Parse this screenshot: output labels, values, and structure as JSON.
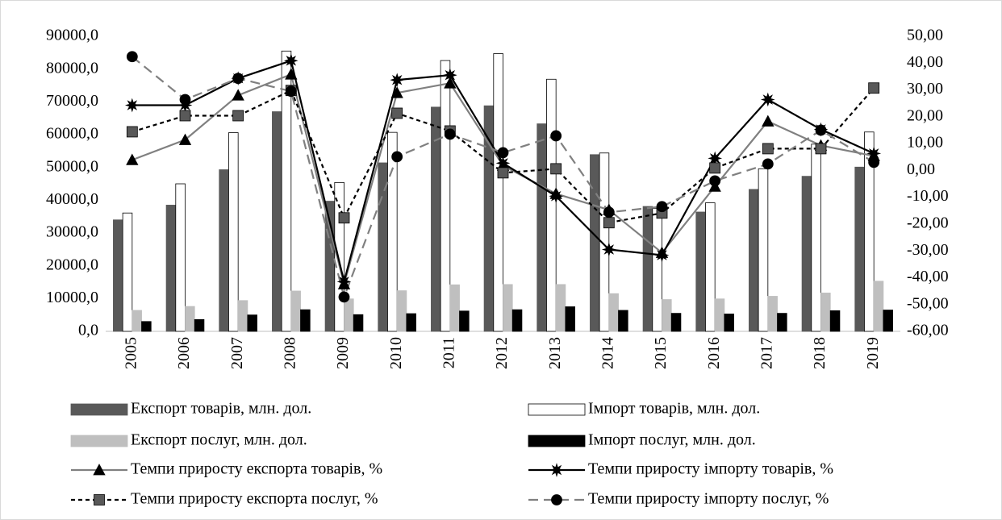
{
  "chart_data": {
    "type": "combo",
    "categories": [
      "2005",
      "2006",
      "2007",
      "2008",
      "2009",
      "2010",
      "2011",
      "2012",
      "2013",
      "2014",
      "2015",
      "2016",
      "2017",
      "2018",
      "2019"
    ],
    "series": [
      {
        "name": "Експорт товарів, млн. дол.",
        "kind": "bar",
        "axis": "y",
        "color": "#595959",
        "values": [
          34000,
          38500,
          49300,
          67000,
          39700,
          51400,
          68400,
          68800,
          63300,
          53900,
          38100,
          36400,
          43300,
          47300,
          50100
        ]
      },
      {
        "name": "Імпорт товарів, млн. дол.",
        "kind": "bar",
        "axis": "y",
        "color": "#ffffff",
        "values": [
          36100,
          45000,
          60600,
          85500,
          45400,
          60700,
          82600,
          84700,
          76900,
          54400,
          37500,
          39200,
          49600,
          57100,
          60800
        ]
      },
      {
        "name": "Експорт послуг, млн. дол.",
        "kind": "bar",
        "axis": "y",
        "color": "#bfbfbf",
        "values": [
          6400,
          7600,
          9400,
          12300,
          9900,
          12400,
          14200,
          14300,
          14300,
          11500,
          9700,
          9900,
          10700,
          11700,
          15300
        ]
      },
      {
        "name": "Імпорт послуг, млн. дол.",
        "kind": "bar",
        "axis": "y",
        "color": "#000000",
        "values": [
          3000,
          3600,
          5000,
          6600,
          5100,
          5400,
          6200,
          6600,
          7500,
          6400,
          5500,
          5300,
          5500,
          6300,
          6500
        ]
      },
      {
        "name": "Темпи приросту експорта товарів, %",
        "kind": "line",
        "axis": "y2",
        "color": "#808080",
        "marker": "triangle",
        "marker_color": "#000000",
        "dash": "solid",
        "values": [
          3.9,
          11.4,
          28,
          35.8,
          -42.4,
          28.9,
          32.5,
          1.8,
          -8.7,
          -14.7,
          -30.7,
          -6.0,
          18.3,
          9.3,
          5.4
        ]
      },
      {
        "name": "Темпи приросту імпорту товарів, %",
        "kind": "line",
        "axis": "y2",
        "color": "#000000",
        "marker": "star",
        "marker_color": "#000000",
        "dash": "solid",
        "values": [
          24.3,
          24.3,
          34.3,
          40.9,
          -41.5,
          33.7,
          35.5,
          2.7,
          -9.6,
          -29.5,
          -31.6,
          4.5,
          26.4,
          15.3,
          6.3
        ]
      },
      {
        "name": "Темпи приросту експорта послуг, %",
        "kind": "line",
        "axis": "y2",
        "color": "#000000",
        "marker": "square",
        "marker_color": "#595959",
        "dash": "dotted",
        "values": [
          14.4,
          20.4,
          20.4,
          29.8,
          -17.7,
          21.3,
          14.7,
          -0.9,
          0.6,
          -19.5,
          -15.9,
          0.9,
          8.1,
          8.1,
          30.7
        ]
      },
      {
        "name": "Темпи приросту імпорту послуг, %",
        "kind": "line",
        "axis": "y2",
        "color": "#808080",
        "marker": "circle",
        "marker_color": "#000000",
        "dash": "dashed",
        "values": [
          42.4,
          26.4,
          34.3,
          29.5,
          -47.2,
          5.1,
          13.5,
          6.6,
          12.9,
          -15.6,
          -13.5,
          -3.9,
          2.4,
          15.0,
          3.0
        ]
      }
    ],
    "ylim": [
      0,
      90000
    ],
    "yticks": [
      {
        "value": 0,
        "label": "0,0"
      },
      {
        "value": 10000,
        "label": "10000,0"
      },
      {
        "value": 20000,
        "label": "20000,0"
      },
      {
        "value": 30000,
        "label": "30000,0"
      },
      {
        "value": 40000,
        "label": "40000,0"
      },
      {
        "value": 50000,
        "label": "50000,0"
      },
      {
        "value": 60000,
        "label": "60000,0"
      },
      {
        "value": 70000,
        "label": "70000,0"
      },
      {
        "value": 80000,
        "label": "80000,0"
      },
      {
        "value": 90000,
        "label": "90000,0"
      }
    ],
    "y2lim": [
      -60,
      50
    ],
    "y2ticks": [
      {
        "value": -60,
        "label": "-60,00"
      },
      {
        "value": -50,
        "label": "-50,00"
      },
      {
        "value": -40,
        "label": "-40,00"
      },
      {
        "value": -30,
        "label": "-30,00"
      },
      {
        "value": -20,
        "label": "-20,00"
      },
      {
        "value": -10,
        "label": "-10,00"
      },
      {
        "value": 0,
        "label": "0,00"
      },
      {
        "value": 10,
        "label": "10,00"
      },
      {
        "value": 20,
        "label": "20,00"
      },
      {
        "value": 30,
        "label": "30,00"
      },
      {
        "value": 40,
        "label": "40,00"
      },
      {
        "value": 50,
        "label": "50,00"
      }
    ],
    "grid": false,
    "legend": "bottom"
  }
}
